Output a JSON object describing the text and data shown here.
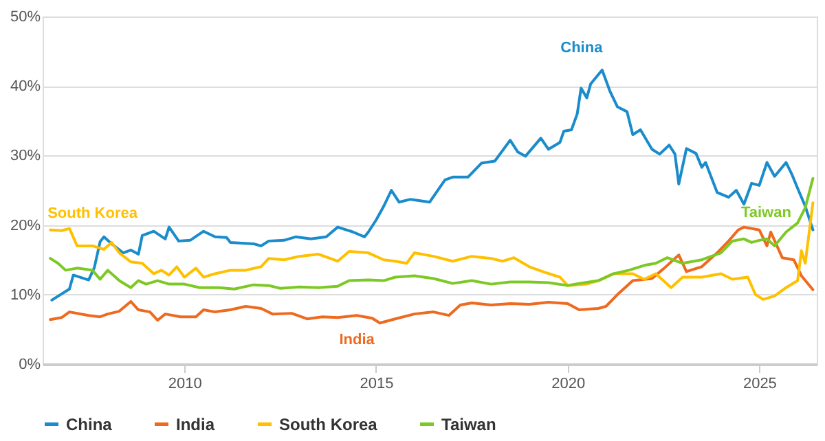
{
  "chart_data": {
    "type": "line",
    "xlim": [
      2006.3,
      2026.5
    ],
    "xticks": [
      2010,
      2015,
      2020,
      2025
    ],
    "ylim": [
      0,
      50
    ],
    "yticks": [
      {
        "value": 0,
        "label": "0%"
      },
      {
        "value": 10,
        "label": "10%"
      },
      {
        "value": 20,
        "label": "20%"
      },
      {
        "value": 30,
        "label": "30%"
      },
      {
        "value": 40,
        "label": "40%"
      },
      {
        "value": 50,
        "label": "50%"
      }
    ],
    "grid": "y",
    "legend": "bottom",
    "series": [
      {
        "name": "China",
        "color": "#1a8ccc",
        "x": [
          2006.54,
          2007.0,
          2007.1,
          2007.5,
          2007.65,
          2007.8,
          2007.9,
          2008.1,
          2008.4,
          2008.6,
          2008.8,
          2008.9,
          2009.2,
          2009.5,
          2009.6,
          2009.85,
          2010.15,
          2010.5,
          2010.8,
          2011.1,
          2011.2,
          2011.8,
          2012.0,
          2012.2,
          2012.6,
          2012.9,
          2013.3,
          2013.7,
          2014.0,
          2014.4,
          2014.7,
          2014.8,
          2015.0,
          2015.2,
          2015.4,
          2015.6,
          2015.9,
          2016.4,
          2016.8,
          2017.0,
          2017.4,
          2017.75,
          2018.1,
          2018.5,
          2018.7,
          2018.9,
          2019.3,
          2019.5,
          2019.8,
          2019.9,
          2020.1,
          2020.25,
          2020.35,
          2020.5,
          2020.6,
          2020.75,
          2020.9,
          2021.1,
          2021.3,
          2021.55,
          2021.7,
          2021.9,
          2022.2,
          2022.4,
          2022.65,
          2022.8,
          2022.9,
          2023.1,
          2023.35,
          2023.5,
          2023.6,
          2023.9,
          2024.2,
          2024.4,
          2024.6,
          2024.8,
          2025.0,
          2025.2,
          2025.4,
          2025.7,
          2025.85,
          2026.0,
          2026.2,
          2026.4
        ],
        "values": [
          9.2,
          10.8,
          12.8,
          12.1,
          13.9,
          17.6,
          18.3,
          17.3,
          16.0,
          16.4,
          15.8,
          18.5,
          19.1,
          18.0,
          19.7,
          17.7,
          17.8,
          19.1,
          18.3,
          18.2,
          17.5,
          17.3,
          17.0,
          17.7,
          17.8,
          18.3,
          18.0,
          18.3,
          19.7,
          19.0,
          18.3,
          19.0,
          20.7,
          22.7,
          25.0,
          23.3,
          23.7,
          23.3,
          26.5,
          26.9,
          26.9,
          28.9,
          29.2,
          32.2,
          30.5,
          29.9,
          32.5,
          30.9,
          31.9,
          33.5,
          33.7,
          36.0,
          39.7,
          38.3,
          40.3,
          41.3,
          42.3,
          39.3,
          37.0,
          36.3,
          33.0,
          33.7,
          30.9,
          30.2,
          31.5,
          30.2,
          25.9,
          31.0,
          30.3,
          28.3,
          29.0,
          24.7,
          24.0,
          25.0,
          23.0,
          26.0,
          25.7,
          29.0,
          27.0,
          29.0,
          27.3,
          25.3,
          22.7,
          19.3
        ]
      },
      {
        "name": "India",
        "color": "#ee6a1f",
        "x": [
          2006.5,
          2006.8,
          2007.0,
          2007.5,
          2007.8,
          2008.0,
          2008.3,
          2008.6,
          2008.8,
          2009.1,
          2009.3,
          2009.5,
          2009.9,
          2010.3,
          2010.5,
          2010.8,
          2011.2,
          2011.6,
          2012.0,
          2012.3,
          2012.8,
          2013.2,
          2013.6,
          2014.0,
          2014.5,
          2014.9,
          2015.1,
          2015.5,
          2016.0,
          2016.5,
          2016.9,
          2017.2,
          2017.5,
          2018.0,
          2018.5,
          2019.0,
          2019.5,
          2020.0,
          2020.3,
          2020.8,
          2021.0,
          2021.3,
          2021.7,
          2022.2,
          2022.5,
          2022.9,
          2023.1,
          2023.5,
          2023.9,
          2024.2,
          2024.45,
          2024.6,
          2025.0,
          2025.2,
          2025.3,
          2025.6,
          2025.9,
          2026.1,
          2026.4
        ],
        "values": [
          6.4,
          6.7,
          7.5,
          7.0,
          6.8,
          7.2,
          7.6,
          9.0,
          7.8,
          7.5,
          6.3,
          7.2,
          6.8,
          6.8,
          7.8,
          7.5,
          7.8,
          8.3,
          8.0,
          7.2,
          7.3,
          6.5,
          6.8,
          6.7,
          7.0,
          6.6,
          5.9,
          6.5,
          7.2,
          7.5,
          7.0,
          8.5,
          8.8,
          8.5,
          8.7,
          8.6,
          8.9,
          8.7,
          7.8,
          8.0,
          8.3,
          10.0,
          12.0,
          12.3,
          13.7,
          15.7,
          13.3,
          14.0,
          16.0,
          17.7,
          19.3,
          19.7,
          19.3,
          17.0,
          19.0,
          15.3,
          15.0,
          12.7,
          10.7
        ]
      },
      {
        "name": "South Korea",
        "color": "#ffc000",
        "x": [
          2006.5,
          2006.8,
          2007.0,
          2007.2,
          2007.6,
          2007.9,
          2008.1,
          2008.3,
          2008.6,
          2008.9,
          2009.2,
          2009.4,
          2009.6,
          2009.8,
          2010.0,
          2010.3,
          2010.5,
          2010.8,
          2011.2,
          2011.6,
          2012.0,
          2012.2,
          2012.6,
          2013.0,
          2013.5,
          2014.0,
          2014.3,
          2014.8,
          2015.2,
          2015.5,
          2015.8,
          2016.0,
          2016.5,
          2017.0,
          2017.5,
          2018.0,
          2018.3,
          2018.6,
          2019.0,
          2019.4,
          2019.8,
          2020.0,
          2020.5,
          2020.8,
          2021.2,
          2021.7,
          2022.0,
          2022.3,
          2022.7,
          2023.0,
          2023.5,
          2024.0,
          2024.3,
          2024.7,
          2024.9,
          2025.1,
          2025.4,
          2025.7,
          2026.0,
          2026.1,
          2026.2,
          2026.4
        ],
        "values": [
          19.3,
          19.2,
          19.5,
          17.0,
          17.0,
          16.5,
          17.5,
          16.0,
          14.7,
          14.5,
          13.0,
          13.5,
          12.8,
          14.0,
          12.5,
          13.8,
          12.5,
          13.0,
          13.5,
          13.5,
          14.0,
          15.2,
          15.0,
          15.5,
          15.8,
          14.8,
          16.2,
          16.0,
          15.0,
          14.8,
          14.5,
          16.0,
          15.5,
          14.8,
          15.5,
          15.2,
          14.8,
          15.3,
          14.0,
          13.2,
          12.5,
          11.3,
          11.5,
          12.0,
          13.0,
          13.0,
          12.2,
          13.0,
          11.0,
          12.5,
          12.5,
          13.0,
          12.2,
          12.5,
          10.0,
          9.3,
          9.8,
          11.0,
          12.0,
          16.3,
          14.5,
          23.2
        ]
      },
      {
        "name": "Taiwan",
        "color": "#7dc924",
        "x": [
          2006.5,
          2006.7,
          2006.9,
          2007.2,
          2007.6,
          2007.8,
          2008.0,
          2008.3,
          2008.6,
          2008.8,
          2009.0,
          2009.3,
          2009.6,
          2010.0,
          2010.4,
          2010.9,
          2011.3,
          2011.8,
          2012.2,
          2012.5,
          2013.0,
          2013.5,
          2014.0,
          2014.3,
          2014.8,
          2015.2,
          2015.5,
          2016.0,
          2016.5,
          2017.0,
          2017.5,
          2018.0,
          2018.5,
          2019.0,
          2019.5,
          2020.0,
          2020.3,
          2020.8,
          2021.2,
          2021.6,
          2022.0,
          2022.3,
          2022.6,
          2023.0,
          2023.5,
          2024.0,
          2024.3,
          2024.6,
          2024.8,
          2025.0,
          2025.2,
          2025.4,
          2025.7,
          2026.0,
          2026.2,
          2026.4
        ],
        "values": [
          15.2,
          14.5,
          13.5,
          13.8,
          13.5,
          12.2,
          13.5,
          12.0,
          11.0,
          12.0,
          11.5,
          12.0,
          11.5,
          11.5,
          11.0,
          11.0,
          10.8,
          11.4,
          11.3,
          10.9,
          11.1,
          11.0,
          11.2,
          12.0,
          12.1,
          12.0,
          12.5,
          12.7,
          12.3,
          11.6,
          12.0,
          11.5,
          11.8,
          11.8,
          11.7,
          11.3,
          11.6,
          12.0,
          13.0,
          13.5,
          14.2,
          14.5,
          15.3,
          14.5,
          15.0,
          16.0,
          17.7,
          18.0,
          17.5,
          17.8,
          18.0,
          17.0,
          19.0,
          20.3,
          22.5,
          26.7
        ]
      }
    ]
  }
}
